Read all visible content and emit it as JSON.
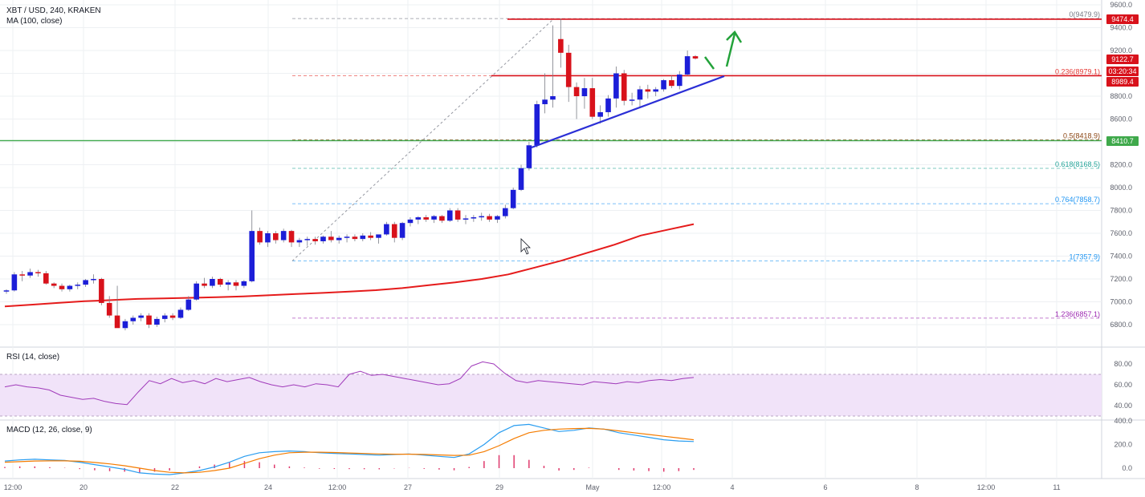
{
  "header": {
    "symbol": "XBT / USD, 240, KRAKEN",
    "indicator": "MA (100, close)"
  },
  "rsi_panel": {
    "label": "RSI (14, close)"
  },
  "macd_panel": {
    "label": "MACD (12, 26, close, 9)"
  },
  "colors": {
    "up": "#1c1ed8",
    "down": "#d8121b",
    "ma": "#e51b1b",
    "trendline": "#2b2fd6",
    "support": "#3fa94b",
    "rsi_line": "#a03aba",
    "rsi_band": "#f1e3f9",
    "macd_line": "#2a9df0",
    "signal_line": "#f57c00",
    "hist": "#e03a6d",
    "grid": "#eef0f3",
    "arrow": "#23a23a"
  },
  "price_axis": {
    "ticks": [
      "9600.0",
      "9400.0",
      "9200.0",
      "9000.0",
      "8800.0",
      "8600.0",
      "8400.0",
      "8200.0",
      "8000.0",
      "7800.0",
      "7600.0",
      "7400.0",
      "7200.0",
      "7000.0",
      "6800.0"
    ],
    "tags": {
      "resistance": "9474.4",
      "last": "9122.7",
      "countdown": "03:20:34",
      "prev": "8989.4",
      "support": "8410.7"
    }
  },
  "rsi_axis": {
    "ticks": [
      "80.00",
      "60.00",
      "40.00"
    ]
  },
  "macd_axis": {
    "ticks": [
      "400.0",
      "200.0",
      "0.0"
    ]
  },
  "time_axis": {
    "ticks": [
      "12:00",
      "20",
      "22",
      "24",
      "12:00",
      "27",
      "29",
      "May",
      "12:00",
      "4",
      "6",
      "8",
      "12:00",
      "11"
    ]
  },
  "chart_data": {
    "type": "candlestick",
    "title": "XBT / USD, 240, KRAKEN",
    "ylim": [
      6720,
      9640
    ],
    "candles": [
      [
        7090,
        7110,
        7070,
        7100
      ],
      [
        7100,
        7260,
        7090,
        7240
      ],
      [
        7240,
        7270,
        7180,
        7230
      ],
      [
        7230,
        7290,
        7210,
        7260
      ],
      [
        7260,
        7280,
        7220,
        7250
      ],
      [
        7250,
        7270,
        7150,
        7160
      ],
      [
        7160,
        7170,
        7120,
        7140
      ],
      [
        7140,
        7160,
        7090,
        7110
      ],
      [
        7110,
        7150,
        7090,
        7140
      ],
      [
        7140,
        7170,
        7110,
        7150
      ],
      [
        7150,
        7200,
        7130,
        7190
      ],
      [
        7190,
        7240,
        7160,
        7200
      ],
      [
        7200,
        7210,
        6970,
        6990
      ],
      [
        6990,
        7050,
        6860,
        6880
      ],
      [
        6880,
        7140,
        6780,
        6770
      ],
      [
        6770,
        6850,
        6750,
        6830
      ],
      [
        6830,
        6880,
        6800,
        6860
      ],
      [
        6860,
        6900,
        6830,
        6880
      ],
      [
        6880,
        6900,
        6770,
        6800
      ],
      [
        6800,
        6870,
        6780,
        6850
      ],
      [
        6850,
        6900,
        6820,
        6880
      ],
      [
        6880,
        6900,
        6840,
        6860
      ],
      [
        6860,
        6950,
        6850,
        6930
      ],
      [
        6930,
        7050,
        6920,
        7020
      ],
      [
        7020,
        7180,
        7010,
        7160
      ],
      [
        7160,
        7210,
        7120,
        7140
      ],
      [
        7140,
        7220,
        7120,
        7200
      ],
      [
        7200,
        7210,
        7130,
        7150
      ],
      [
        7150,
        7190,
        7100,
        7170
      ],
      [
        7170,
        7190,
        7100,
        7140
      ],
      [
        7140,
        7190,
        7120,
        7180
      ],
      [
        7180,
        7800,
        7170,
        7620
      ],
      [
        7620,
        7650,
        7500,
        7520
      ],
      [
        7520,
        7620,
        7480,
        7600
      ],
      [
        7600,
        7620,
        7510,
        7540
      ],
      [
        7540,
        7640,
        7520,
        7620
      ],
      [
        7620,
        7630,
        7480,
        7520
      ],
      [
        7520,
        7560,
        7480,
        7540
      ],
      [
        7540,
        7570,
        7490,
        7550
      ],
      [
        7550,
        7570,
        7500,
        7530
      ],
      [
        7530,
        7580,
        7510,
        7570
      ],
      [
        7570,
        7620,
        7520,
        7540
      ],
      [
        7540,
        7580,
        7510,
        7560
      ],
      [
        7560,
        7590,
        7520,
        7570
      ],
      [
        7570,
        7590,
        7530,
        7550
      ],
      [
        7550,
        7600,
        7530,
        7580
      ],
      [
        7580,
        7610,
        7540,
        7560
      ],
      [
        7560,
        7580,
        7510,
        7590
      ],
      [
        7590,
        7700,
        7580,
        7680
      ],
      [
        7680,
        7700,
        7520,
        7560
      ],
      [
        7560,
        7700,
        7540,
        7690
      ],
      [
        7690,
        7740,
        7660,
        7720
      ],
      [
        7720,
        7750,
        7680,
        7740
      ],
      [
        7740,
        7760,
        7700,
        7720
      ],
      [
        7720,
        7760,
        7690,
        7750
      ],
      [
        7750,
        7760,
        7690,
        7710
      ],
      [
        7710,
        7820,
        7700,
        7800
      ],
      [
        7800,
        7820,
        7700,
        7720
      ],
      [
        7720,
        7760,
        7680,
        7730
      ],
      [
        7730,
        7760,
        7700,
        7740
      ],
      [
        7740,
        7780,
        7710,
        7750
      ],
      [
        7750,
        7770,
        7700,
        7720
      ],
      [
        7720,
        7760,
        7690,
        7750
      ],
      [
        7750,
        7850,
        7730,
        7820
      ],
      [
        7820,
        8000,
        7810,
        7980
      ],
      [
        7980,
        8200,
        7970,
        8170
      ],
      [
        8170,
        8400,
        8150,
        8370
      ],
      [
        8370,
        8760,
        8350,
        8730
      ],
      [
        8730,
        9000,
        8650,
        8770
      ],
      [
        8770,
        9420,
        8700,
        8800
      ],
      [
        9300,
        9480,
        9050,
        9180
      ],
      [
        9180,
        9250,
        8750,
        8880
      ],
      [
        8880,
        8920,
        8600,
        8800
      ],
      [
        8800,
        8960,
        8690,
        8870
      ],
      [
        8870,
        8960,
        8600,
        8620
      ],
      [
        8620,
        8720,
        8560,
        8660
      ],
      [
        8660,
        8810,
        8620,
        8780
      ],
      [
        8780,
        9060,
        8700,
        9000
      ],
      [
        9000,
        9030,
        8720,
        8760
      ],
      [
        8760,
        8830,
        8720,
        8770
      ],
      [
        8770,
        8890,
        8700,
        8860
      ],
      [
        8860,
        8900,
        8780,
        8840
      ],
      [
        8840,
        8880,
        8800,
        8860
      ],
      [
        8860,
        8950,
        8840,
        8940
      ],
      [
        8940,
        8980,
        8870,
        8890
      ],
      [
        8890,
        9020,
        8860,
        8990
      ],
      [
        8990,
        9200,
        8980,
        9150
      ],
      [
        9150,
        9160,
        9120,
        9130
      ]
    ],
    "ma100": [
      6960,
      6975,
      6990,
      7005,
      7015,
      7025,
      7030,
      7035,
      7040,
      7048,
      7058,
      7068,
      7078,
      7090,
      7102,
      7120,
      7145,
      7170,
      7200,
      7240,
      7300,
      7360,
      7430,
      7500,
      7580,
      7630,
      7680
    ],
    "rsi": [
      58,
      60,
      58,
      57,
      55,
      50,
      48,
      46,
      47,
      44,
      42,
      41,
      53,
      64,
      61,
      66,
      62,
      64,
      61,
      66,
      63,
      65,
      67,
      63,
      60,
      58,
      60,
      58,
      61,
      60,
      58,
      70,
      73,
      69,
      70,
      68,
      66,
      64,
      62,
      60,
      61,
      66,
      78,
      82,
      80,
      71,
      64,
      62,
      64,
      63,
      62,
      61,
      60,
      63,
      62,
      61,
      63,
      62,
      64,
      65,
      64,
      66,
      67
    ],
    "macd": [
      60,
      70,
      75,
      70,
      65,
      50,
      30,
      10,
      -10,
      -40,
      -50,
      -55,
      -40,
      -20,
      10,
      50,
      100,
      130,
      140,
      145,
      140,
      130,
      125,
      120,
      115,
      110,
      115,
      120,
      110,
      100,
      90,
      120,
      200,
      300,
      360,
      370,
      340,
      310,
      320,
      340,
      330,
      300,
      280,
      260,
      240,
      230,
      225
    ],
    "signal": [
      50,
      55,
      60,
      62,
      62,
      58,
      48,
      36,
      20,
      0,
      -20,
      -35,
      -40,
      -35,
      -20,
      0,
      40,
      80,
      110,
      130,
      135,
      135,
      132,
      128,
      124,
      120,
      118,
      118,
      116,
      112,
      108,
      110,
      140,
      190,
      250,
      300,
      320,
      330,
      335,
      336,
      330,
      315,
      300,
      285,
      270,
      255,
      240
    ],
    "fibonacci": [
      {
        "level": "0",
        "price": "9479.9"
      },
      {
        "level": "0.236",
        "price": "8979.1"
      },
      {
        "level": "0.5",
        "price": "8418.9"
      },
      {
        "level": "0.618",
        "price": "8168.5"
      },
      {
        "level": "0.764",
        "price": "7858.7"
      },
      {
        "level": "1",
        "price": "7357.9"
      },
      {
        "level": "1.236",
        "price": "6857.1"
      }
    ]
  }
}
